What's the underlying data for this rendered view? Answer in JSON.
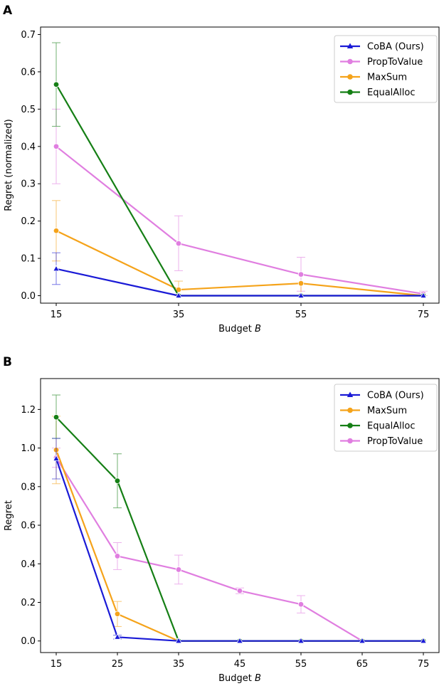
{
  "chart_data": [
    {
      "panel": "A",
      "type": "line",
      "title": "",
      "xlabel": "Budget B",
      "ylabel": "Regret (normalized)",
      "categories": [
        15,
        35,
        55,
        75
      ],
      "ylim": [
        -0.02,
        0.72
      ],
      "yticks": [
        0.0,
        0.1,
        0.2,
        0.3,
        0.4,
        0.5,
        0.6,
        0.7
      ],
      "grid": false,
      "legend_position": "top-right",
      "series": [
        {
          "name": "CoBA (Ours)",
          "color": "#1a1ad6",
          "marker": "triangle",
          "values": [
            0.072,
            0.0,
            0.0,
            0.0
          ],
          "lower": [
            0.03,
            0.0,
            0.0,
            0.0
          ],
          "upper": [
            0.115,
            0.0,
            0.0,
            0.0
          ]
        },
        {
          "name": "PropToValue",
          "color": "#e07ee0",
          "marker": "circle",
          "values": [
            0.4,
            0.14,
            0.057,
            0.005
          ],
          "lower": [
            0.3,
            0.067,
            0.012,
            0.0
          ],
          "upper": [
            0.5,
            0.214,
            0.103,
            0.012
          ]
        },
        {
          "name": "MaxSum",
          "color": "#f5a31a",
          "marker": "circle",
          "values": [
            0.174,
            0.016,
            0.033,
            0.0
          ],
          "lower": [
            0.093,
            0.0,
            0.0,
            0.0
          ],
          "upper": [
            0.255,
            0.039,
            0.033,
            0.0
          ]
        },
        {
          "name": "EqualAlloc",
          "color": "#157f15",
          "marker": "circle",
          "values": [
            0.566,
            0.0,
            0.0,
            0.0
          ],
          "lower": [
            0.454,
            0.0,
            0.0,
            0.0
          ],
          "upper": [
            0.678,
            0.0,
            0.0,
            0.0
          ]
        }
      ]
    },
    {
      "panel": "B",
      "type": "line",
      "title": "",
      "xlabel": "Budget B",
      "ylabel": "Regret",
      "categories": [
        15,
        25,
        35,
        45,
        55,
        65,
        75
      ],
      "ylim": [
        -0.06,
        1.36
      ],
      "yticks": [
        0.0,
        0.2,
        0.4,
        0.6,
        0.8,
        1.0,
        1.2
      ],
      "grid": false,
      "legend_position": "top-right",
      "series": [
        {
          "name": "CoBA (Ours)",
          "color": "#1a1ad6",
          "marker": "triangle",
          "values": [
            0.945,
            0.02,
            0.0,
            0.0,
            0.0,
            0.0,
            0.0
          ],
          "lower": [
            0.84,
            0.01,
            0.0,
            0.0,
            0.0,
            0.0,
            0.0
          ],
          "upper": [
            1.05,
            0.03,
            0.0,
            0.0,
            0.0,
            0.0,
            0.0
          ]
        },
        {
          "name": "MaxSum",
          "color": "#f5a31a",
          "marker": "circle",
          "values": [
            0.99,
            0.14,
            0.0,
            0.0,
            0.0,
            0.0,
            0.0
          ],
          "lower": [
            0.815,
            0.075,
            0.0,
            0.0,
            0.0,
            0.0,
            0.0
          ],
          "upper": [
            1.165,
            0.205,
            0.0,
            0.0,
            0.0,
            0.0,
            0.0
          ]
        },
        {
          "name": "EqualAlloc",
          "color": "#157f15",
          "marker": "circle",
          "values": [
            1.16,
            0.83,
            0.0,
            0.0,
            0.0,
            0.0,
            0.0
          ],
          "lower": [
            1.05,
            0.69,
            0.0,
            0.0,
            0.0,
            0.0,
            0.0
          ],
          "upper": [
            1.275,
            0.97,
            0.0,
            0.0,
            0.0,
            0.0,
            0.0
          ]
        },
        {
          "name": "PropToValue",
          "color": "#e07ee0",
          "marker": "circle",
          "values": [
            0.95,
            0.44,
            0.37,
            0.26,
            0.19,
            0.0,
            0.0
          ],
          "lower": [
            0.9,
            0.37,
            0.295,
            0.245,
            0.145,
            0.0,
            0.0
          ],
          "upper": [
            1.0,
            0.51,
            0.445,
            0.275,
            0.235,
            0.0,
            0.0
          ]
        }
      ]
    }
  ]
}
